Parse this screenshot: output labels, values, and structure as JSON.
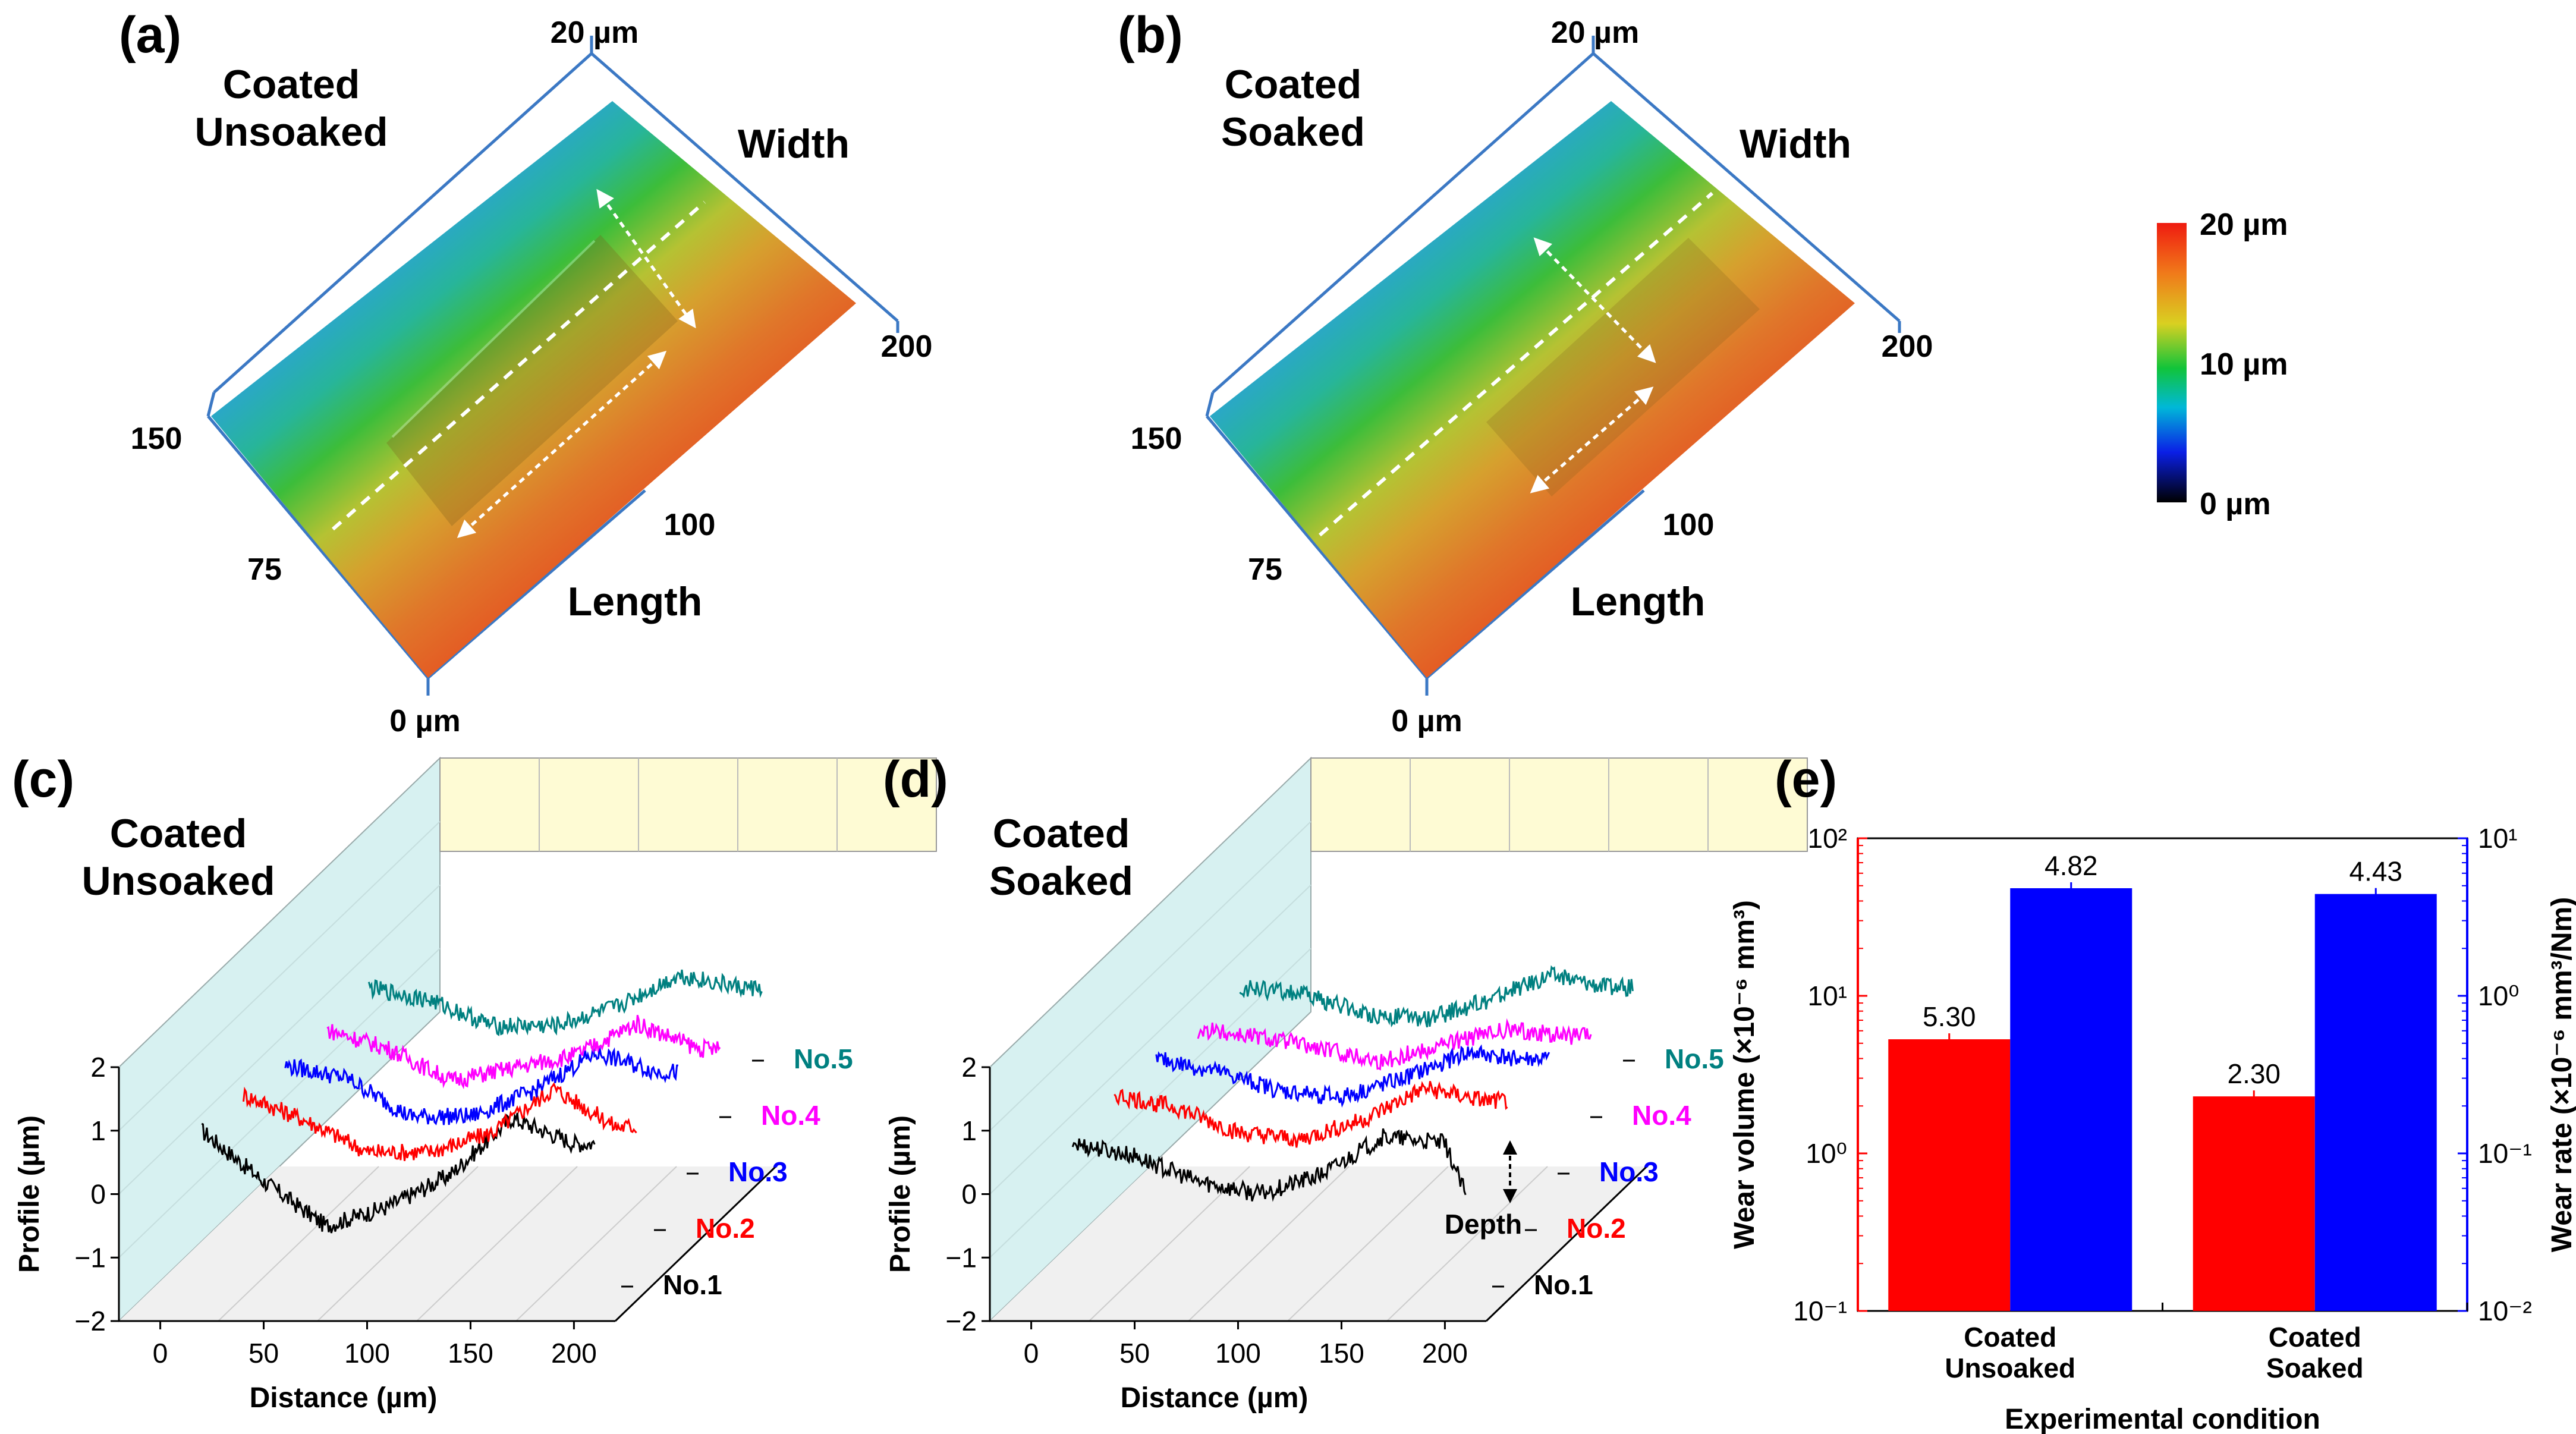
{
  "figure": {
    "panel_a": {
      "letter": "(a)",
      "title_line1": "Coated",
      "title_line2": "Unsoaked",
      "axis_top": "20 µm",
      "axis_origin": "0 µm",
      "tick_75": "75",
      "tick_150": "150",
      "tick_100": "100",
      "tick_200": "200",
      "width_label": "Width",
      "length_label": "Length"
    },
    "panel_b": {
      "letter": "(b)",
      "title_line1": "Coated",
      "title_line2": "Soaked",
      "axis_top": "20 µm",
      "axis_origin": "0 µm",
      "tick_75": "75",
      "tick_150": "150",
      "tick_100": "100",
      "tick_200": "200",
      "width_label": "Width",
      "length_label": "Length"
    },
    "colorbar": {
      "max": "20 µm",
      "mid": "10 µm",
      "min": "0 µm",
      "colors": [
        "#000000",
        "#0a1fe6",
        "#00b8d8",
        "#11c43a",
        "#d9d021",
        "#f07a1a",
        "#ef1b10"
      ]
    },
    "panel_c": {
      "letter": "(c)",
      "title_line1": "Coated",
      "title_line2": "Unsoaked"
    },
    "panel_d": {
      "letter": "(d)",
      "title_line1": "Coated",
      "title_line2": "Soaked",
      "depth_label": "Depth"
    },
    "panel_e": {
      "letter": "(e)"
    }
  },
  "chart_data": [
    {
      "panel": "c",
      "type": "line",
      "title": "",
      "xlabel": "Distance (µm)",
      "ylabel": "Profile (µm)",
      "xlim": [
        -20,
        220
      ],
      "ylim": [
        -2,
        2
      ],
      "xticks": [
        "0",
        "50",
        "100",
        "150",
        "200"
      ],
      "yticks": [
        "−2",
        "−1",
        "0",
        "1",
        "2"
      ],
      "series": [
        {
          "name": "No.1",
          "color": "#000000",
          "x": [
            20,
            50,
            80,
            110,
            140,
            170,
            200,
            210
          ],
          "y": [
            1.0,
            0.2,
            -0.5,
            -0.2,
            0.3,
            1.2,
            0.8,
            0.8
          ]
        },
        {
          "name": "No.2",
          "color": "#ff0000",
          "x": [
            20,
            50,
            80,
            110,
            140,
            170,
            200,
            210
          ],
          "y": [
            1.0,
            0.6,
            0.1,
            0.1,
            0.4,
            1.1,
            0.5,
            0.5
          ]
        },
        {
          "name": "No.3",
          "color": "#0000ff",
          "x": [
            20,
            50,
            80,
            110,
            140,
            170,
            200,
            210
          ],
          "y": [
            0.9,
            0.7,
            0.1,
            0.1,
            0.5,
            1.1,
            0.8,
            0.8
          ]
        },
        {
          "name": "No.4",
          "color": "#ff00ff",
          "x": [
            20,
            50,
            80,
            110,
            140,
            170,
            200,
            210
          ],
          "y": [
            0.9,
            0.6,
            0.1,
            0.3,
            0.5,
            1.0,
            0.6,
            0.6
          ]
        },
        {
          "name": "No.5",
          "color": "#008080",
          "x": [
            20,
            50,
            80,
            110,
            140,
            170,
            200,
            210
          ],
          "y": [
            1.0,
            0.8,
            0.4,
            0.4,
            0.7,
            1.2,
            1.0,
            1.0
          ]
        }
      ]
    },
    {
      "panel": "d",
      "type": "line",
      "title": "",
      "xlabel": "Distance (µm)",
      "ylabel": "Profile (µm)",
      "xlim": [
        -20,
        220
      ],
      "ylim": [
        -2,
        2
      ],
      "xticks": [
        "0",
        "50",
        "100",
        "150",
        "200"
      ],
      "yticks": [
        "−2",
        "−1",
        "0",
        "1",
        "2"
      ],
      "series": [
        {
          "name": "No.1",
          "color": "#000000",
          "x": [
            20,
            50,
            80,
            110,
            140,
            170,
            200,
            210
          ],
          "y": [
            0.8,
            0.6,
            0.2,
            0.0,
            0.3,
            0.9,
            0.8,
            0.0
          ]
        },
        {
          "name": "No.2",
          "color": "#ff0000",
          "x": [
            20,
            50,
            80,
            110,
            140,
            170,
            200,
            210
          ],
          "y": [
            1.0,
            0.8,
            0.4,
            0.3,
            0.6,
            1.1,
            0.9,
            0.9
          ]
        },
        {
          "name": "No.3",
          "color": "#0000ff",
          "x": [
            20,
            50,
            80,
            110,
            140,
            170,
            200,
            210
          ],
          "y": [
            1.0,
            0.8,
            0.5,
            0.4,
            0.7,
            1.1,
            1.0,
            1.0
          ]
        },
        {
          "name": "No.4",
          "color": "#ff00ff",
          "x": [
            20,
            50,
            80,
            110,
            140,
            170,
            200,
            210
          ],
          "y": [
            0.9,
            0.8,
            0.6,
            0.4,
            0.7,
            0.9,
            0.8,
            0.8
          ]
        },
        {
          "name": "No.5",
          "color": "#008080",
          "x": [
            20,
            50,
            80,
            110,
            140,
            170,
            200,
            210
          ],
          "y": [
            1.0,
            0.9,
            0.6,
            0.5,
            0.8,
            1.2,
            1.0,
            1.0
          ]
        }
      ]
    },
    {
      "panel": "e",
      "type": "bar",
      "title": "",
      "categories": [
        "Coated\nUnsoaked",
        "Coated\nSoaked"
      ],
      "xlabel": "Experimental condition",
      "ylabel_left": "Wear volume (×10⁻⁶ mm³)",
      "ylabel_right": "Wear rate (×10⁻⁶ mm³/Nm)",
      "yscale": "log",
      "ylim_left": [
        0.1,
        100
      ],
      "ylim_right": [
        0.01,
        10
      ],
      "yticks_left": [
        "10⁻¹",
        "10⁰",
        "10¹",
        "10²"
      ],
      "yticks_right": [
        "10⁻²",
        "10⁻¹",
        "10⁰",
        "10¹"
      ],
      "series": [
        {
          "name": "Wear volume",
          "axis": "left",
          "color": "#ff0000",
          "values": [
            5.3,
            2.3
          ],
          "labels": [
            "5.30",
            "2.30"
          ]
        },
        {
          "name": "Wear rate",
          "axis": "right",
          "color": "#0000ff",
          "values": [
            4.82,
            4.43
          ],
          "labels": [
            "4.82",
            "4.43"
          ]
        }
      ]
    }
  ]
}
